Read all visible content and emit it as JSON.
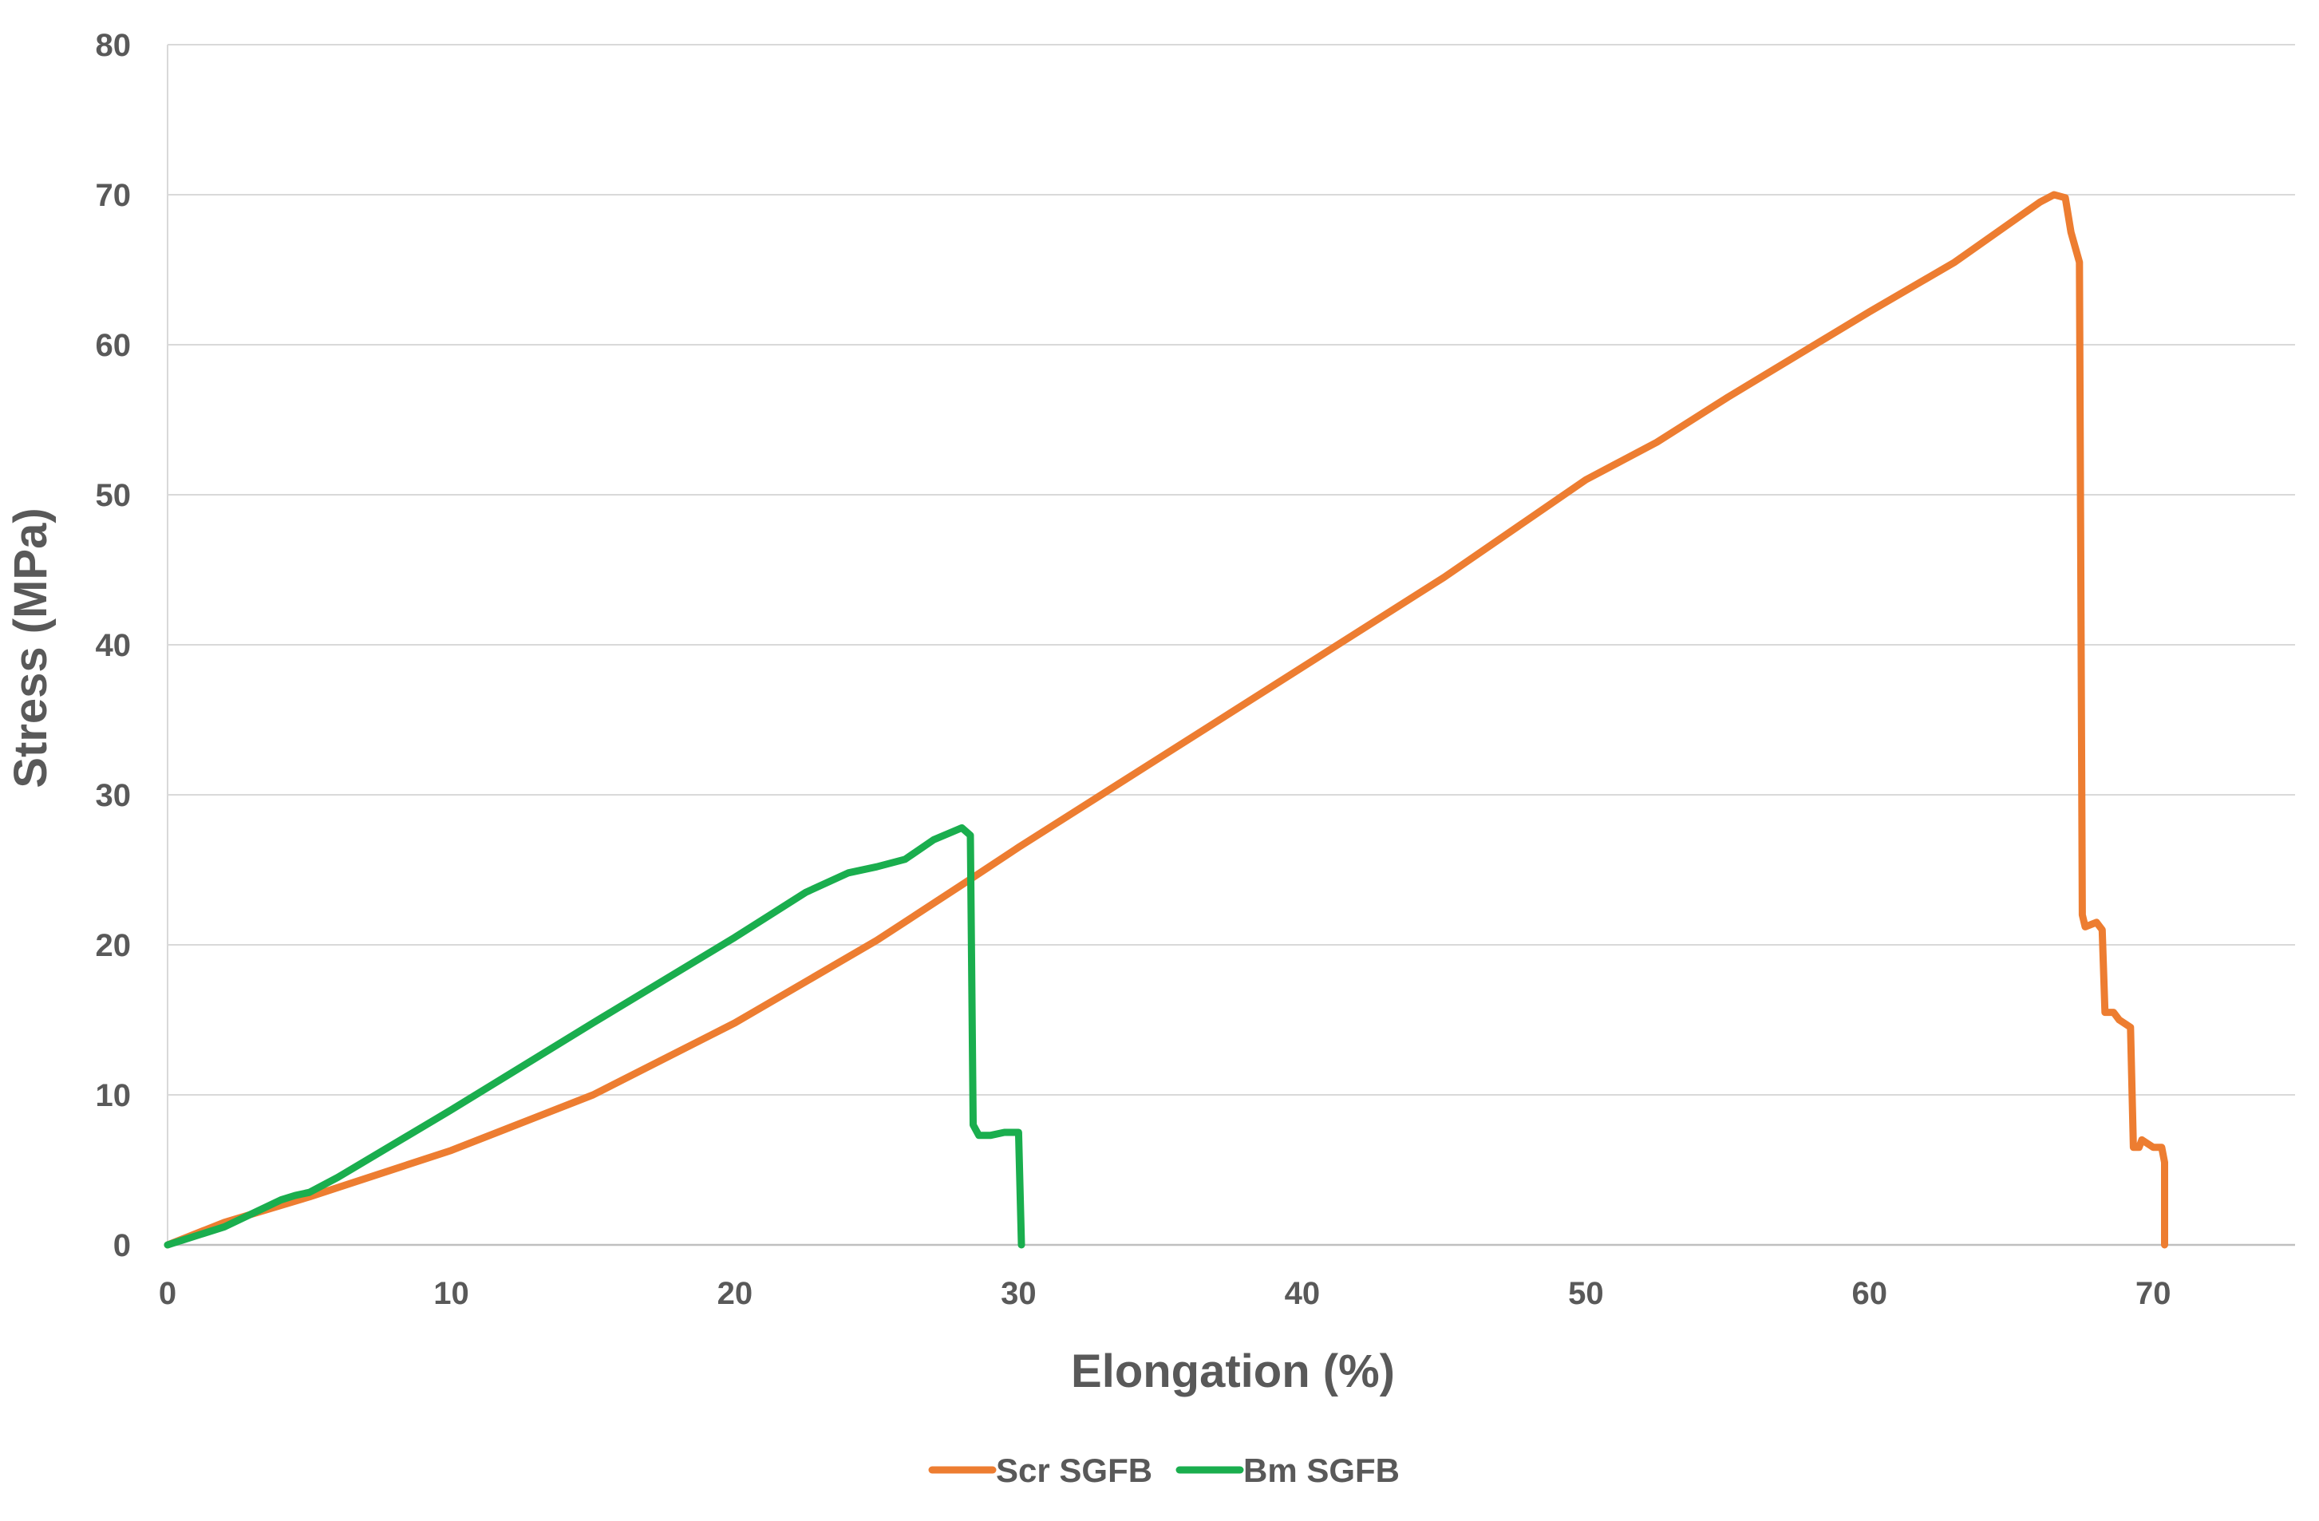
{
  "chart_data": {
    "type": "line",
    "title": "",
    "xlabel": "Elongation (%)",
    "ylabel": "Stress (MPa)",
    "xlim": [
      0,
      75
    ],
    "ylim": [
      0,
      80
    ],
    "x_ticks": [
      0,
      10,
      20,
      30,
      40,
      50,
      60,
      70
    ],
    "y_ticks": [
      0,
      10,
      20,
      30,
      40,
      50,
      60,
      70,
      80
    ],
    "x_tick_labels": [
      "0",
      "10",
      "20",
      "30",
      "40",
      "50",
      "60",
      "70"
    ],
    "y_tick_labels": [
      "0",
      "10",
      "20",
      "30",
      "40",
      "50",
      "60",
      "70",
      "80"
    ],
    "grid": "horizontal",
    "legend_position": "bottom",
    "series": [
      {
        "name": "Scr SGFB",
        "color": "#ED7D31",
        "points": [
          [
            0,
            0
          ],
          [
            2,
            1.5
          ],
          [
            5,
            3.2
          ],
          [
            10,
            6.3
          ],
          [
            15,
            10
          ],
          [
            20,
            14.8
          ],
          [
            25,
            20.3
          ],
          [
            28,
            24
          ],
          [
            30,
            26.5
          ],
          [
            35,
            32.5
          ],
          [
            40,
            38.5
          ],
          [
            45,
            44.5
          ],
          [
            50,
            51
          ],
          [
            51,
            52
          ],
          [
            52.5,
            53.5
          ],
          [
            55,
            56.5
          ],
          [
            60,
            62.2
          ],
          [
            63,
            65.5
          ],
          [
            66,
            69.5
          ],
          [
            66.5,
            70
          ],
          [
            66.9,
            69.8
          ],
          [
            67.1,
            67.5
          ],
          [
            67.4,
            65.5
          ],
          [
            67.5,
            22
          ],
          [
            67.6,
            21.2
          ],
          [
            68,
            21.5
          ],
          [
            68.2,
            21
          ],
          [
            68.3,
            15.5
          ],
          [
            68.6,
            15.5
          ],
          [
            68.8,
            15
          ],
          [
            69.2,
            14.5
          ],
          [
            69.3,
            6.5
          ],
          [
            69.5,
            6.5
          ],
          [
            69.6,
            7
          ],
          [
            70,
            6.5
          ],
          [
            70.3,
            6.5
          ],
          [
            70.4,
            5.5
          ],
          [
            70.4,
            0
          ]
        ]
      },
      {
        "name": "Bm SGFB",
        "color": "#1AAE4E",
        "points": [
          [
            0,
            0
          ],
          [
            2,
            1.2
          ],
          [
            4,
            3
          ],
          [
            4.5,
            3.3
          ],
          [
            5,
            3.5
          ],
          [
            6,
            4.5
          ],
          [
            10,
            9
          ],
          [
            15,
            14.8
          ],
          [
            20,
            20.5
          ],
          [
            22.5,
            23.5
          ],
          [
            24,
            24.8
          ],
          [
            25,
            25.2
          ],
          [
            26,
            25.7
          ],
          [
            27,
            27
          ],
          [
            28,
            27.8
          ],
          [
            28.3,
            27.3
          ],
          [
            28.4,
            8
          ],
          [
            28.6,
            7.3
          ],
          [
            29,
            7.3
          ],
          [
            29.5,
            7.5
          ],
          [
            30,
            7.5
          ],
          [
            30.1,
            0
          ]
        ]
      }
    ]
  }
}
